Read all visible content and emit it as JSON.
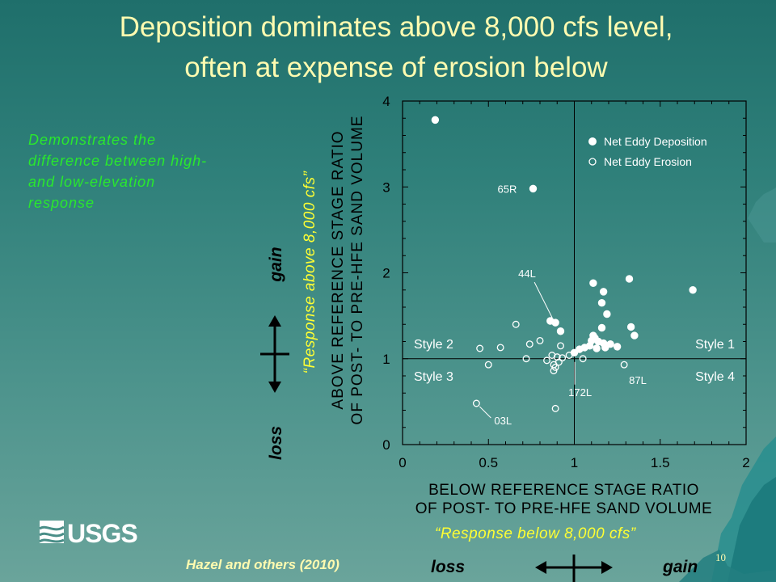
{
  "title": {
    "line1": "Deposition dominates above 8,000 cfs level,",
    "line2": "often at expense of erosion below"
  },
  "note": "Demonstrates the difference between high- and low-elevation response",
  "citation": "Hazel and others (2010)",
  "page_number": "10",
  "logo_text": "USGS",
  "y_arrow": {
    "top_label": "gain",
    "bottom_label": "loss"
  },
  "x_arrow": {
    "left_label": "loss",
    "right_label": "gain"
  },
  "response_above": "“Response above 8,000 cfs”",
  "response_below": "“Response below 8,000 cfs”",
  "chart_data": {
    "type": "scatter",
    "xlabel": [
      "BELOW REFERENCE STAGE RATIO",
      "OF POST- TO PRE-HFE SAND VOLUME"
    ],
    "ylabel": [
      "ABOVE REFERENCE STAGE RATIO",
      "OF POST- TO PRE-HFE SAND VOLUME"
    ],
    "xlim": [
      0,
      2
    ],
    "ylim": [
      0,
      4
    ],
    "xticks": [
      "0",
      "0.5",
      "1",
      "1.5",
      "2"
    ],
    "yticks": [
      "0",
      "1",
      "2",
      "3",
      "4"
    ],
    "reference_lines": {
      "x": 1,
      "y": 1
    },
    "legend_position": "top-right",
    "quadrant_labels": {
      "top_left": "Style 2",
      "top_right": "Style 1",
      "bottom_left": "Style 3",
      "bottom_right": "Style 4"
    },
    "series": [
      {
        "name": "Net Eddy Deposition",
        "marker": "filled-circle",
        "points": [
          [
            0.19,
            3.78
          ],
          [
            0.76,
            2.98
          ],
          [
            1.11,
            1.88
          ],
          [
            1.17,
            1.78
          ],
          [
            1.32,
            1.93
          ],
          [
            1.69,
            1.8
          ],
          [
            1.16,
            1.65
          ],
          [
            1.19,
            1.52
          ],
          [
            0.86,
            1.44
          ],
          [
            0.89,
            1.42
          ],
          [
            0.92,
            1.32
          ],
          [
            1.16,
            1.36
          ],
          [
            1.33,
            1.37
          ],
          [
            1.35,
            1.27
          ],
          [
            1.11,
            1.27
          ],
          [
            1.12,
            1.24
          ],
          [
            1.1,
            1.21
          ],
          [
            1.14,
            1.2
          ],
          [
            1.17,
            1.18
          ],
          [
            1.09,
            1.15
          ],
          [
            1.13,
            1.12
          ],
          [
            1.21,
            1.17
          ],
          [
            1.25,
            1.14
          ],
          [
            1.06,
            1.13
          ],
          [
            1.18,
            1.13
          ],
          [
            1.0,
            1.07
          ],
          [
            1.03,
            1.11
          ]
        ]
      },
      {
        "name": "Net Eddy Erosion",
        "marker": "open-circle",
        "points": [
          [
            0.43,
            0.48
          ],
          [
            0.89,
            0.42
          ],
          [
            0.45,
            1.12
          ],
          [
            0.5,
            0.93
          ],
          [
            0.57,
            1.13
          ],
          [
            0.66,
            1.4
          ],
          [
            0.72,
            1.0
          ],
          [
            0.74,
            1.17
          ],
          [
            0.8,
            1.21
          ],
          [
            0.84,
            0.98
          ],
          [
            0.87,
            1.04
          ],
          [
            0.88,
            0.86
          ],
          [
            0.9,
            1.02
          ],
          [
            0.91,
            0.96
          ],
          [
            0.93,
            1.01
          ],
          [
            0.88,
            0.93
          ],
          [
            0.92,
            1.15
          ],
          [
            0.97,
            1.04
          ],
          [
            1.05,
            1.0
          ],
          [
            1.29,
            0.93
          ],
          [
            0.89,
            0.9
          ]
        ]
      }
    ],
    "annotations": [
      {
        "text": "65R",
        "x": 0.76,
        "y": 2.98
      },
      {
        "text": "44L",
        "x": 0.89,
        "y": 1.42
      },
      {
        "text": "172L",
        "x": 1.05,
        "y": 1.0
      },
      {
        "text": "87L",
        "x": 1.29,
        "y": 0.93
      },
      {
        "text": "03L",
        "x": 0.43,
        "y": 0.48
      }
    ]
  }
}
